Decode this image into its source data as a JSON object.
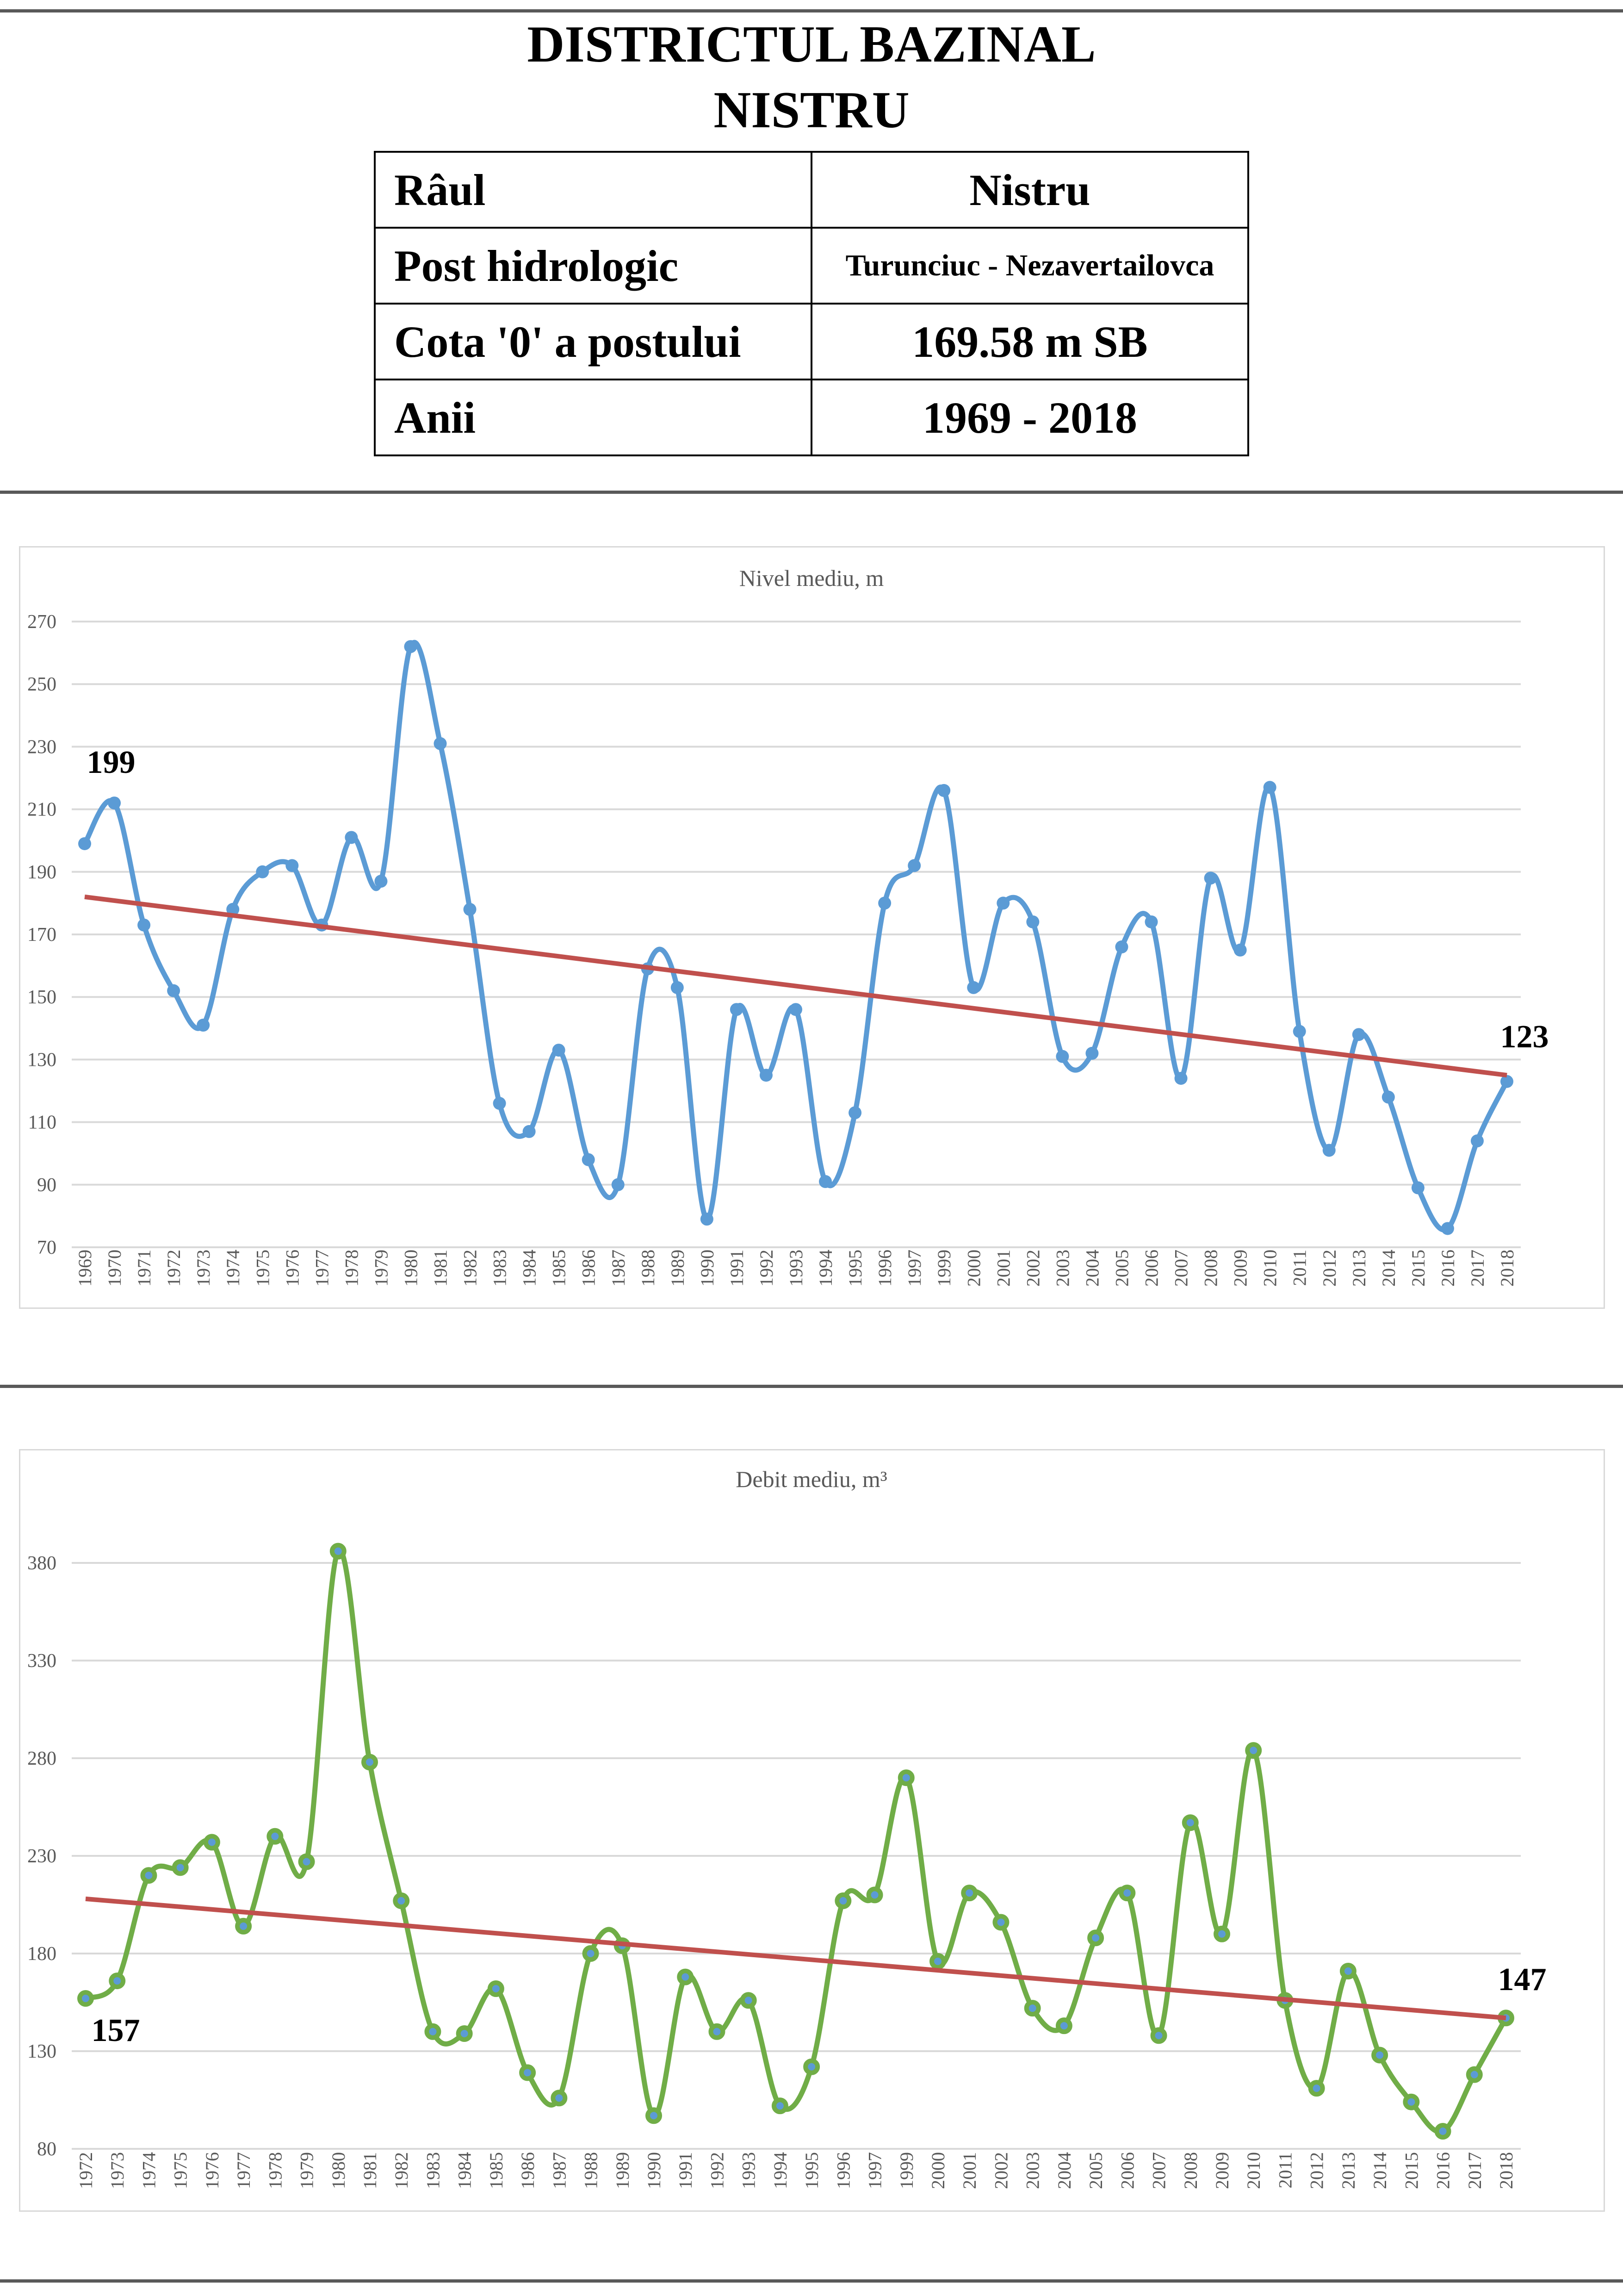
{
  "header": {
    "title_line1": "DISTRICTUL BAZINAL",
    "title_line2": "NISTRU"
  },
  "info_table": [
    {
      "label": "Râul",
      "value": "Nistru"
    },
    {
      "label": "Post hidrologic",
      "value": "Turunciuc - Nezavertailovca"
    },
    {
      "label": "Cota '0' a postului",
      "value": "169.58 m SB"
    },
    {
      "label": "Anii",
      "value": "1969 - 2018"
    }
  ],
  "chart_data": [
    {
      "type": "line",
      "title": "Nivel mediu, m",
      "xlabel": "",
      "ylabel": "",
      "ylim": [
        70,
        270
      ],
      "yticks": [
        70,
        90,
        110,
        130,
        150,
        170,
        190,
        210,
        230,
        250,
        270
      ],
      "grid": true,
      "series_color": "#5b9bd5",
      "trend_color": "#c0504d",
      "categories": [
        "1969",
        "1970",
        "1971",
        "1972",
        "1973",
        "1974",
        "1975",
        "1976",
        "1977",
        "1978",
        "1979",
        "1980",
        "1981",
        "1982",
        "1983",
        "1984",
        "1985",
        "1986",
        "1987",
        "1988",
        "1989",
        "1990",
        "1991",
        "1992",
        "1993",
        "1994",
        "1995",
        "1996",
        "1997",
        "1999",
        "2000",
        "2001",
        "2002",
        "2003",
        "2004",
        "2005",
        "2006",
        "2007",
        "2008",
        "2009",
        "2010",
        "2011",
        "2012",
        "2013",
        "2014",
        "2015",
        "2016",
        "2017",
        "2018"
      ],
      "values": [
        199,
        212,
        173,
        152,
        141,
        178,
        190,
        192,
        173,
        201,
        187,
        262,
        231,
        178,
        116,
        107,
        133,
        98,
        90,
        159,
        153,
        79,
        146,
        125,
        146,
        91,
        113,
        180,
        192,
        216,
        153,
        180,
        174,
        131,
        132,
        166,
        174,
        124,
        188,
        165,
        217,
        139,
        101,
        138,
        118,
        89,
        76,
        104,
        123
      ],
      "trend": [
        182,
        125
      ],
      "annotations": {
        "first": "199",
        "last": "123"
      }
    },
    {
      "type": "line",
      "title": "Debit mediu, m³",
      "xlabel": "",
      "ylabel": "",
      "ylim": [
        80,
        380
      ],
      "yticks": [
        80,
        130,
        180,
        230,
        280,
        330,
        380
      ],
      "grid": true,
      "series_color": "#70ad47",
      "marker_center_color": "#5b9bd5",
      "trend_color": "#c0504d",
      "categories": [
        "1972",
        "1973",
        "1974",
        "1975",
        "1976",
        "1977",
        "1978",
        "1979",
        "1980",
        "1981",
        "1982",
        "1983",
        "1984",
        "1985",
        "1986",
        "1987",
        "1988",
        "1989",
        "1990",
        "1991",
        "1992",
        "1993",
        "1994",
        "1995",
        "1996",
        "1997",
        "1999",
        "2000",
        "2001",
        "2002",
        "2003",
        "2004",
        "2005",
        "2006",
        "2007",
        "2008",
        "2009",
        "2010",
        "2011",
        "2012",
        "2013",
        "2014",
        "2015",
        "2016",
        "2017",
        "2018"
      ],
      "values": [
        157,
        166,
        220,
        224,
        237,
        194,
        240,
        227,
        386,
        278,
        207,
        140,
        139,
        162,
        119,
        106,
        180,
        184,
        97,
        168,
        140,
        156,
        102,
        122,
        207,
        210,
        270,
        176,
        211,
        196,
        152,
        143,
        188,
        211,
        138,
        247,
        190,
        284,
        156,
        111,
        171,
        128,
        104,
        89,
        118,
        147
      ],
      "trend": [
        208,
        147
      ],
      "annotations": {
        "first": "157",
        "last": "147"
      }
    }
  ]
}
